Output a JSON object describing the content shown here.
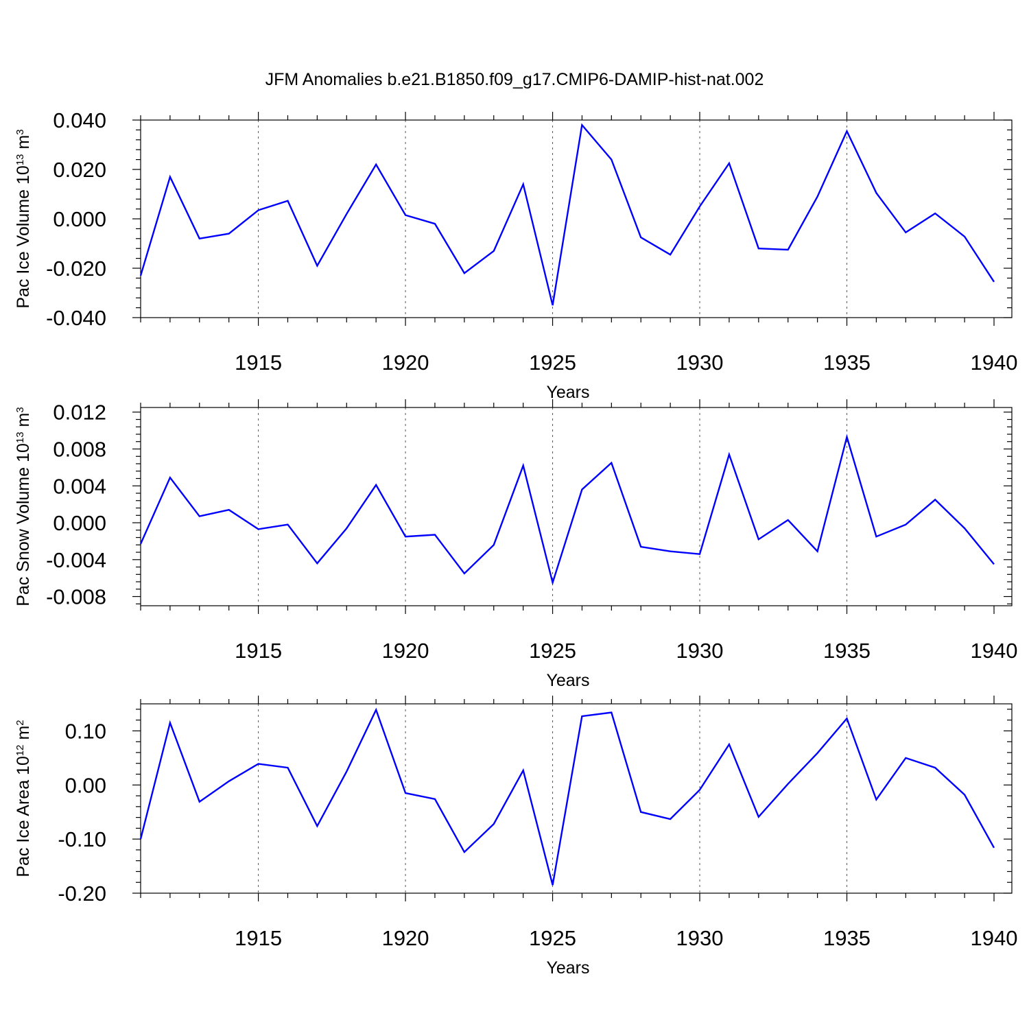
{
  "figure_title": "JFM Anomalies b.e21.B1850.f09_g17.CMIP6-DAMIP-hist-nat.002",
  "chart_data": [
    {
      "type": "line",
      "xlabel": "Years",
      "ylabel": {
        "base": "Pac Ice Volume 10",
        "exp1": "13",
        "mid": " m",
        "exp2": "3"
      },
      "xlim": [
        1911,
        1940
      ],
      "ylim": [
        -0.04,
        0.04
      ],
      "x_ticks": [
        1915,
        1920,
        1925,
        1930,
        1935,
        1940
      ],
      "y_ticks": [
        -0.04,
        -0.02,
        0.0,
        0.02,
        0.04
      ],
      "y_tick_labels": [
        "-0.040",
        "-0.020",
        "0.000",
        "0.020",
        "0.040"
      ],
      "grid": "dashed vertical at major x ticks",
      "series_color": "#0000ff",
      "series": [
        {
          "values": [
            -0.023,
            0.017,
            -0.008,
            -0.006,
            0.0035,
            0.0073,
            -0.019,
            0.002,
            0.022,
            0.0015,
            -0.002,
            -0.022,
            -0.013,
            0.014,
            -0.035,
            0.038,
            0.024,
            -0.0075,
            -0.0145,
            0.005,
            0.0225,
            -0.012,
            -0.0125,
            0.009,
            0.0355,
            0.0105,
            -0.0055,
            0.0022,
            -0.0072,
            -0.0255
          ]
        }
      ],
      "x": [
        1911,
        1912,
        1913,
        1914,
        1915,
        1916,
        1917,
        1918,
        1919,
        1920,
        1921,
        1922,
        1923,
        1924,
        1925,
        1926,
        1927,
        1928,
        1929,
        1930,
        1931,
        1932,
        1933,
        1934,
        1935,
        1936,
        1937,
        1938,
        1939,
        1940
      ]
    },
    {
      "type": "line",
      "xlabel": "Years",
      "ylabel": {
        "base": "Pac Snow Volume 10",
        "exp1": "13",
        "mid": " m",
        "exp2": "3"
      },
      "xlim": [
        1911,
        1940
      ],
      "ylim": [
        -0.009,
        0.0125
      ],
      "x_ticks": [
        1915,
        1920,
        1925,
        1930,
        1935,
        1940
      ],
      "y_ticks": [
        -0.008,
        -0.004,
        0.0,
        0.004,
        0.008,
        0.012
      ],
      "y_tick_labels": [
        "-0.008",
        "-0.004",
        "0.000",
        "0.004",
        "0.008",
        "0.012"
      ],
      "grid": "dashed vertical at major x ticks",
      "series_color": "#0000ff",
      "series": [
        {
          "values": [
            -0.0023,
            0.0049,
            0.0007,
            0.0014,
            -0.0007,
            -0.0002,
            -0.0044,
            -0.0006,
            0.0041,
            -0.0015,
            -0.0013,
            -0.0055,
            -0.0024,
            0.0062,
            -0.0065,
            0.0036,
            0.0065,
            -0.0026,
            -0.0031,
            -0.0034,
            0.0074,
            -0.0018,
            0.0003,
            -0.0031,
            0.0093,
            -0.0015,
            -0.0002,
            0.0025,
            -0.0006,
            -0.0045
          ]
        }
      ],
      "x": [
        1911,
        1912,
        1913,
        1914,
        1915,
        1916,
        1917,
        1918,
        1919,
        1920,
        1921,
        1922,
        1923,
        1924,
        1925,
        1926,
        1927,
        1928,
        1929,
        1930,
        1931,
        1932,
        1933,
        1934,
        1935,
        1936,
        1937,
        1938,
        1939,
        1940
      ]
    },
    {
      "type": "line",
      "xlabel": "Years",
      "ylabel": {
        "base": "Pac Ice Area 10",
        "exp1": "12",
        "mid": " m",
        "exp2": "2"
      },
      "xlim": [
        1911,
        1940
      ],
      "ylim": [
        -0.2,
        0.15
      ],
      "x_ticks": [
        1915,
        1920,
        1925,
        1930,
        1935,
        1940
      ],
      "y_ticks": [
        -0.2,
        -0.1,
        0.0,
        0.1
      ],
      "y_tick_labels": [
        "-0.20",
        "-0.10",
        "0.00",
        "0.10"
      ],
      "grid": "dashed vertical at major x ticks",
      "series_color": "#0000ff",
      "series": [
        {
          "values": [
            -0.1,
            0.115,
            -0.031,
            0.007,
            0.039,
            0.032,
            -0.076,
            0.025,
            0.139,
            -0.015,
            -0.026,
            -0.124,
            -0.072,
            0.027,
            -0.185,
            0.127,
            0.134,
            -0.05,
            -0.063,
            -0.009,
            0.075,
            -0.059,
            0.002,
            0.059,
            0.123,
            -0.027,
            0.05,
            0.032,
            -0.018,
            -0.116
          ]
        }
      ],
      "x": [
        1911,
        1912,
        1913,
        1914,
        1915,
        1916,
        1917,
        1918,
        1919,
        1920,
        1921,
        1922,
        1923,
        1924,
        1925,
        1926,
        1927,
        1928,
        1929,
        1930,
        1931,
        1932,
        1933,
        1934,
        1935,
        1936,
        1937,
        1938,
        1939,
        1940
      ]
    }
  ]
}
